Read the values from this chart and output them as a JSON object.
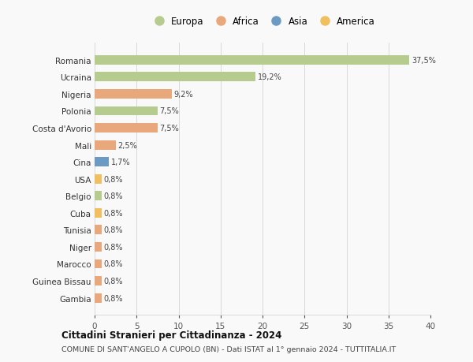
{
  "countries": [
    "Romania",
    "Ucraina",
    "Nigeria",
    "Polonia",
    "Costa d'Avorio",
    "Mali",
    "Cina",
    "USA",
    "Belgio",
    "Cuba",
    "Tunisia",
    "Niger",
    "Marocco",
    "Guinea Bissau",
    "Gambia"
  ],
  "values": [
    37.5,
    19.2,
    9.2,
    7.5,
    7.5,
    2.5,
    1.7,
    0.8,
    0.8,
    0.8,
    0.8,
    0.8,
    0.8,
    0.8,
    0.8
  ],
  "labels": [
    "37,5%",
    "19,2%",
    "9,2%",
    "7,5%",
    "7,5%",
    "2,5%",
    "1,7%",
    "0,8%",
    "0,8%",
    "0,8%",
    "0,8%",
    "0,8%",
    "0,8%",
    "0,8%",
    "0,8%"
  ],
  "colors": [
    "#b5cc8e",
    "#b5cc8e",
    "#e8a87c",
    "#b5cc8e",
    "#e8a87c",
    "#e8a87c",
    "#6b9bc3",
    "#f0c060",
    "#b5cc8e",
    "#f0c060",
    "#e8a87c",
    "#e8a87c",
    "#e8a87c",
    "#e8a87c",
    "#e8a87c"
  ],
  "legend_labels": [
    "Europa",
    "Africa",
    "Asia",
    "America"
  ],
  "legend_colors": [
    "#b5cc8e",
    "#e8a87c",
    "#6b9bc3",
    "#f0c060"
  ],
  "title": "Cittadini Stranieri per Cittadinanza - 2024",
  "subtitle": "COMUNE DI SANT'ANGELO A CUPOLO (BN) - Dati ISTAT al 1° gennaio 2024 - TUTTITALIA.IT",
  "xlim": [
    0,
    40
  ],
  "xticks": [
    0,
    5,
    10,
    15,
    20,
    25,
    30,
    35,
    40
  ],
  "bg_color": "#f9f9f9",
  "grid_color": "#d8d8d8"
}
